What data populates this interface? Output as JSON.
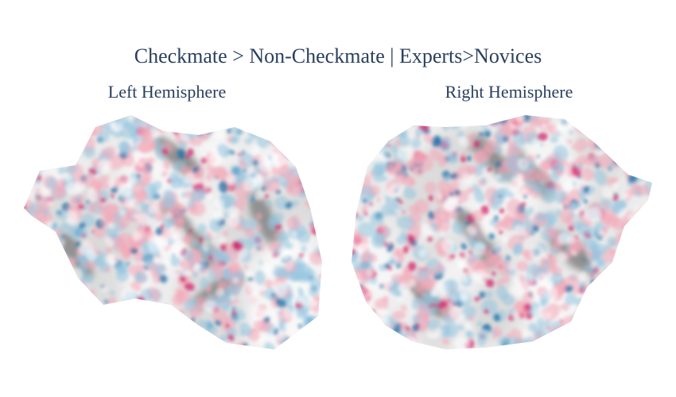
{
  "figure": {
    "title": "Checkmate > Non-Checkmate | Experts>Novices",
    "left_panel": {
      "title": "Left Hemisphere"
    },
    "right_panel": {
      "title": "Right Hemisphere"
    }
  },
  "colors": {
    "text": "#2a3f5f",
    "positive": "#d6246e",
    "positive_light": "#f4a6b7",
    "negative": "#1b72a8",
    "negative_light": "#93c4de",
    "cortex_light": "#ececec",
    "cortex_dark": "#8f8f8f"
  }
}
